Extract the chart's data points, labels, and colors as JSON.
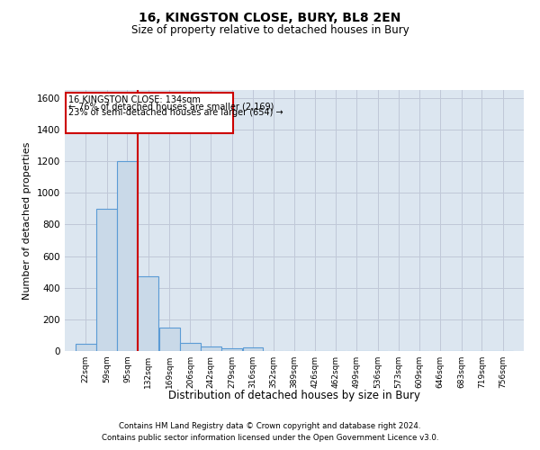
{
  "title": "16, KINGSTON CLOSE, BURY, BL8 2EN",
  "subtitle": "Size of property relative to detached houses in Bury",
  "xlabel": "Distribution of detached houses by size in Bury",
  "ylabel": "Number of detached properties",
  "footer_line1": "Contains HM Land Registry data © Crown copyright and database right 2024.",
  "footer_line2": "Contains public sector information licensed under the Open Government Licence v3.0.",
  "bar_color": "#c9d9e8",
  "bar_edgecolor": "#5b9bd5",
  "grid_color": "#c0c8d8",
  "background_color": "#dce6f0",
  "annotation_box_color": "#cc0000",
  "annotation_line_color": "#cc0000",
  "property_label": "16 KINGSTON CLOSE: 134sqm",
  "annotation_line1": "← 76% of detached houses are smaller (2,169)",
  "annotation_line2": "23% of semi-detached houses are larger (654) →",
  "bin_labels": [
    "22sqm",
    "59sqm",
    "95sqm",
    "132sqm",
    "169sqm",
    "206sqm",
    "242sqm",
    "279sqm",
    "316sqm",
    "352sqm",
    "389sqm",
    "426sqm",
    "462sqm",
    "499sqm",
    "536sqm",
    "573sqm",
    "609sqm",
    "646sqm",
    "683sqm",
    "719sqm",
    "756sqm"
  ],
  "bin_values": [
    45,
    900,
    1200,
    470,
    150,
    50,
    30,
    15,
    20,
    0,
    0,
    0,
    0,
    0,
    0,
    0,
    0,
    0,
    0,
    0,
    0
  ],
  "bin_edges": [
    22,
    59,
    95,
    132,
    169,
    206,
    242,
    279,
    316,
    352,
    389,
    426,
    462,
    499,
    536,
    573,
    609,
    646,
    683,
    719,
    756
  ],
  "ylim": [
    0,
    1650
  ],
  "yticks": [
    0,
    200,
    400,
    600,
    800,
    1000,
    1200,
    1400,
    1600
  ],
  "vline_x": 132
}
